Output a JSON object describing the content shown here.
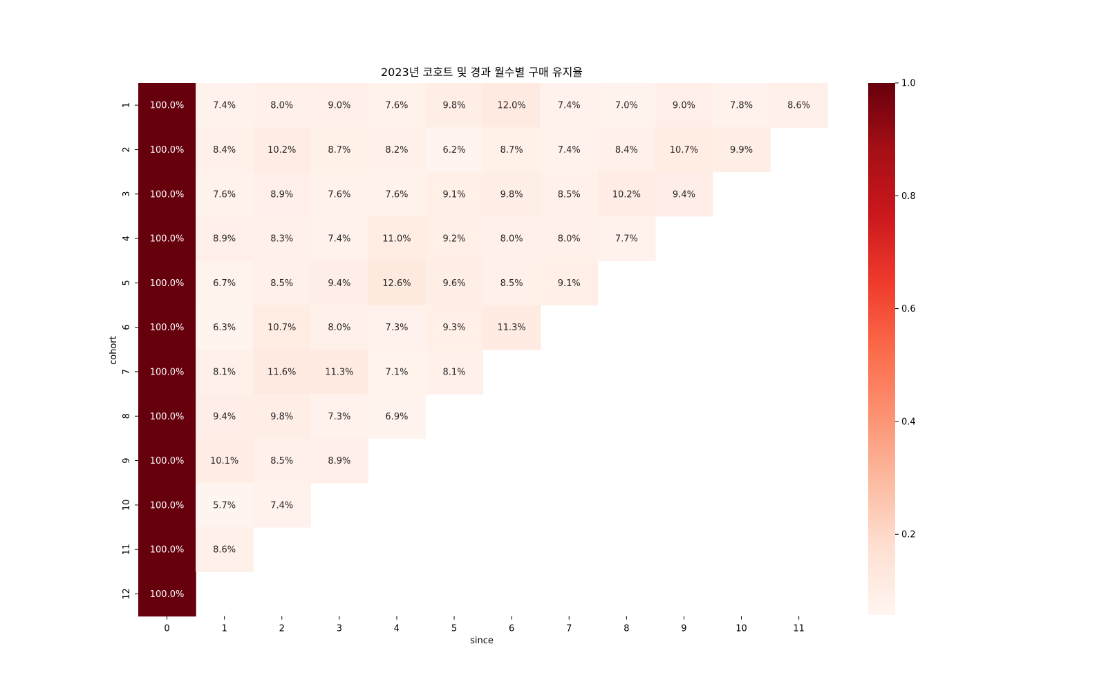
{
  "chart_data": {
    "type": "heatmap",
    "title": "2023년 코호트 및 경과 월수별 구매 유지율",
    "xlabel": "since",
    "ylabel": "cohort",
    "x_categories": [
      "0",
      "1",
      "2",
      "3",
      "4",
      "5",
      "6",
      "7",
      "8",
      "9",
      "10",
      "11"
    ],
    "y_categories": [
      "1",
      "2",
      "3",
      "4",
      "5",
      "6",
      "7",
      "8",
      "9",
      "10",
      "11",
      "12"
    ],
    "values": [
      [
        1.0,
        0.074,
        0.08,
        0.09,
        0.076,
        0.098,
        0.12,
        0.074,
        0.07,
        0.09,
        0.078,
        0.086
      ],
      [
        1.0,
        0.084,
        0.102,
        0.087,
        0.082,
        0.062,
        0.087,
        0.074,
        0.084,
        0.107,
        0.099
      ],
      [
        1.0,
        0.076,
        0.089,
        0.076,
        0.076,
        0.091,
        0.098,
        0.085,
        0.102,
        0.094
      ],
      [
        1.0,
        0.089,
        0.083,
        0.074,
        0.11,
        0.092,
        0.08,
        0.08,
        0.077
      ],
      [
        1.0,
        0.067,
        0.085,
        0.094,
        0.126,
        0.096,
        0.085,
        0.091
      ],
      [
        1.0,
        0.063,
        0.107,
        0.08,
        0.073,
        0.093,
        0.113
      ],
      [
        1.0,
        0.081,
        0.116,
        0.113,
        0.071,
        0.081
      ],
      [
        1.0,
        0.094,
        0.098,
        0.073,
        0.069
      ],
      [
        1.0,
        0.101,
        0.085,
        0.089
      ],
      [
        1.0,
        0.057,
        0.074
      ],
      [
        1.0,
        0.086
      ],
      [
        1.0
      ]
    ],
    "labels": [
      [
        "100.0%",
        "7.4%",
        "8.0%",
        "9.0%",
        "7.6%",
        "9.8%",
        "12.0%",
        "7.4%",
        "7.0%",
        "9.0%",
        "7.8%",
        "8.6%"
      ],
      [
        "100.0%",
        "8.4%",
        "10.2%",
        "8.7%",
        "8.2%",
        "6.2%",
        "8.7%",
        "7.4%",
        "8.4%",
        "10.7%",
        "9.9%"
      ],
      [
        "100.0%",
        "7.6%",
        "8.9%",
        "7.6%",
        "7.6%",
        "9.1%",
        "9.8%",
        "8.5%",
        "10.2%",
        "9.4%"
      ],
      [
        "100.0%",
        "8.9%",
        "8.3%",
        "7.4%",
        "11.0%",
        "9.2%",
        "8.0%",
        "8.0%",
        "7.7%"
      ],
      [
        "100.0%",
        "6.7%",
        "8.5%",
        "9.4%",
        "12.6%",
        "9.6%",
        "8.5%",
        "9.1%"
      ],
      [
        "100.0%",
        "6.3%",
        "10.7%",
        "8.0%",
        "7.3%",
        "9.3%",
        "11.3%"
      ],
      [
        "100.0%",
        "8.1%",
        "11.6%",
        "11.3%",
        "7.1%",
        "8.1%"
      ],
      [
        "100.0%",
        "9.4%",
        "9.8%",
        "7.3%",
        "6.9%"
      ],
      [
        "100.0%",
        "10.1%",
        "8.5%",
        "8.9%"
      ],
      [
        "100.0%",
        "5.7%",
        "7.4%"
      ],
      [
        "100.0%",
        "8.6%"
      ],
      [
        "100.0%"
      ]
    ],
    "colorscale": "Reds",
    "colorbar": {
      "min": 0.057,
      "max": 1.0,
      "ticks": [
        0.2,
        0.4,
        0.6,
        0.8,
        1.0
      ],
      "tick_labels": [
        "0.2",
        "0.4",
        "0.6",
        "0.8",
        "1.0"
      ]
    },
    "colors": {
      "reds": [
        "#fff5f0",
        "#fee0d2",
        "#fcbba1",
        "#fc9272",
        "#fb6a4a",
        "#ef3b2c",
        "#cb181d",
        "#a50f15",
        "#67000d"
      ],
      "text_light": "#ffffff",
      "text_dark": "#262626",
      "axis": "#000000"
    }
  }
}
